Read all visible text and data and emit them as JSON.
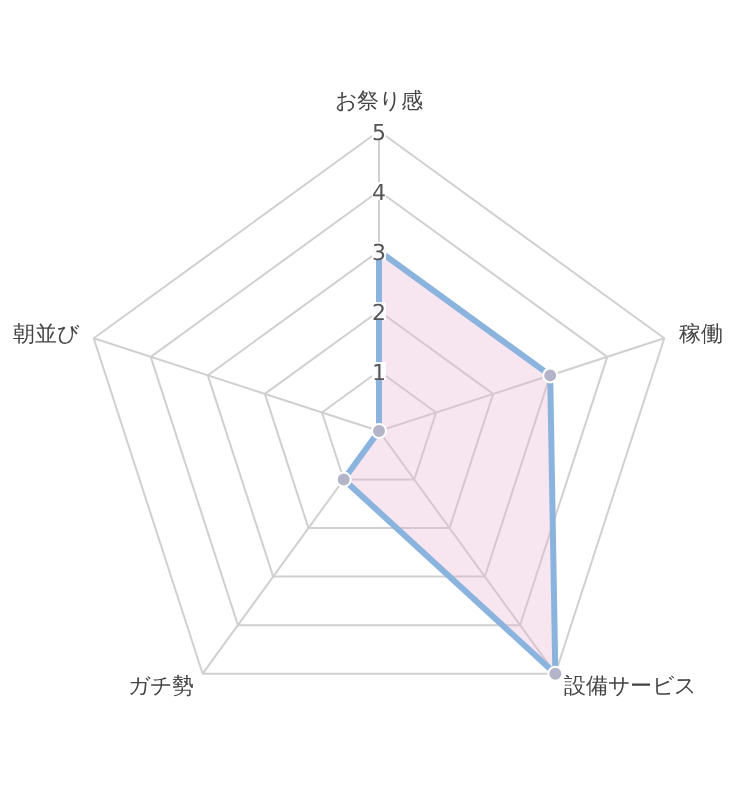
{
  "chart_data": {
    "type": "radar",
    "categories": [
      "お祭り感",
      "稼働",
      "設備サービス",
      "ガチ勢",
      "朝並び"
    ],
    "series": [
      {
        "color": "#8ab4de",
        "values": [
          3,
          3,
          5,
          1,
          0
        ]
      }
    ],
    "ylim": [
      0,
      5
    ],
    "yticks": [
      1,
      2,
      3,
      4,
      5
    ],
    "grid": true,
    "marker": "circle",
    "line_style": "solid"
  }
}
